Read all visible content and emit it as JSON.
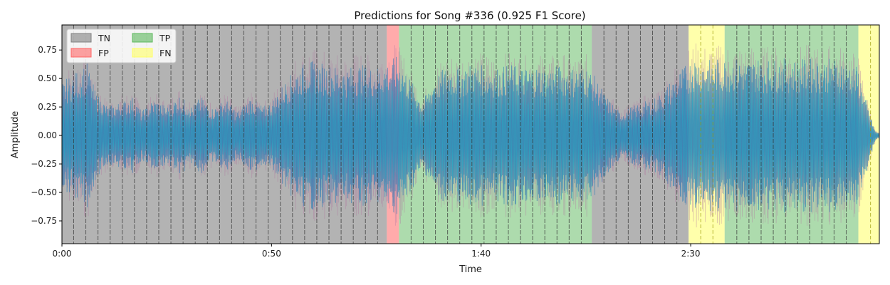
{
  "chart_data": {
    "type": "area",
    "title": "Predictions for Song #336 (0.925 F1 Score)",
    "xlabel": "Time",
    "ylabel": "Amplitude",
    "xlim": [
      0,
      195
    ],
    "ylim": [
      -0.95,
      0.97
    ],
    "xticks": [
      {
        "value": 0,
        "label": "0:00"
      },
      {
        "value": 50,
        "label": "0:50"
      },
      {
        "value": 100,
        "label": "1:40"
      },
      {
        "value": 150,
        "label": "2:30"
      }
    ],
    "yticks": [
      {
        "value": 0.75,
        "label": "0.75"
      },
      {
        "value": 0.5,
        "label": "0.50"
      },
      {
        "value": 0.25,
        "label": "0.25"
      },
      {
        "value": 0.0,
        "label": "0.00"
      },
      {
        "value": -0.25,
        "label": "−0.25"
      },
      {
        "value": -0.5,
        "label": "−0.50"
      },
      {
        "value": -0.75,
        "label": "−0.75"
      }
    ],
    "legend": {
      "placement": "top-left",
      "entries": [
        {
          "label": "TN",
          "color": "#808080"
        },
        {
          "label": "FP",
          "color": "#ff6666"
        },
        {
          "label": "TP",
          "color": "#5cb85c"
        },
        {
          "label": "FN",
          "color": "#ffff66"
        }
      ]
    },
    "segments": [
      {
        "class": "TN",
        "start": 0,
        "end": 77.5
      },
      {
        "class": "FP",
        "start": 77.5,
        "end": 80.4
      },
      {
        "class": "TP",
        "start": 80.4,
        "end": 126.4
      },
      {
        "class": "TN",
        "start": 126.4,
        "end": 149.5
      },
      {
        "class": "FN",
        "start": 149.5,
        "end": 158.1
      },
      {
        "class": "TP",
        "start": 158.1,
        "end": 190.0
      },
      {
        "class": "FN",
        "start": 190.0,
        "end": 195
      }
    ],
    "beat_lines": [
      2.8,
      5.7,
      8.6,
      11.5,
      14.4,
      17.3,
      20.2,
      23.1,
      26.0,
      28.9,
      31.8,
      34.7,
      37.6,
      40.5,
      43.4,
      46.3,
      49.2,
      52.1,
      55.0,
      57.9,
      60.8,
      63.7,
      66.6,
      69.5,
      72.4,
      75.3,
      83.3,
      86.2,
      89.1,
      92.0,
      94.9,
      97.8,
      100.7,
      103.6,
      106.5,
      109.4,
      112.3,
      115.2,
      118.1,
      121.0,
      123.9,
      129.3,
      132.2,
      135.1,
      138.0,
      140.9,
      143.8,
      146.7,
      152.4,
      155.3,
      161.0,
      163.9,
      166.8,
      169.7,
      172.6,
      175.5,
      178.4,
      181.3,
      184.2,
      187.1,
      192.9
    ],
    "envelope": [
      {
        "x": 0,
        "y": 0.55
      },
      {
        "x": 3,
        "y": 0.65
      },
      {
        "x": 6,
        "y": 0.75
      },
      {
        "x": 8,
        "y": 0.45
      },
      {
        "x": 11,
        "y": 0.3
      },
      {
        "x": 14,
        "y": 0.35
      },
      {
        "x": 17,
        "y": 0.4
      },
      {
        "x": 19,
        "y": 0.25
      },
      {
        "x": 22,
        "y": 0.38
      },
      {
        "x": 25,
        "y": 0.3
      },
      {
        "x": 28,
        "y": 0.42
      },
      {
        "x": 31,
        "y": 0.3
      },
      {
        "x": 33,
        "y": 0.4
      },
      {
        "x": 36,
        "y": 0.28
      },
      {
        "x": 39,
        "y": 0.38
      },
      {
        "x": 42,
        "y": 0.25
      },
      {
        "x": 45,
        "y": 0.4
      },
      {
        "x": 48,
        "y": 0.3
      },
      {
        "x": 50,
        "y": 0.35
      },
      {
        "x": 53,
        "y": 0.55
      },
      {
        "x": 56,
        "y": 0.7
      },
      {
        "x": 59,
        "y": 0.78
      },
      {
        "x": 62,
        "y": 0.75
      },
      {
        "x": 65,
        "y": 0.72
      },
      {
        "x": 68,
        "y": 0.7
      },
      {
        "x": 71,
        "y": 0.74
      },
      {
        "x": 74,
        "y": 0.7
      },
      {
        "x": 77,
        "y": 0.75
      },
      {
        "x": 80,
        "y": 0.82
      },
      {
        "x": 83,
        "y": 0.6
      },
      {
        "x": 86,
        "y": 0.35
      },
      {
        "x": 89,
        "y": 0.62
      },
      {
        "x": 92,
        "y": 0.72
      },
      {
        "x": 95,
        "y": 0.7
      },
      {
        "x": 98,
        "y": 0.75
      },
      {
        "x": 101,
        "y": 0.72
      },
      {
        "x": 104,
        "y": 0.7
      },
      {
        "x": 107,
        "y": 0.74
      },
      {
        "x": 110,
        "y": 0.7
      },
      {
        "x": 113,
        "y": 0.72
      },
      {
        "x": 116,
        "y": 0.7
      },
      {
        "x": 119,
        "y": 0.73
      },
      {
        "x": 122,
        "y": 0.7
      },
      {
        "x": 125,
        "y": 0.72
      },
      {
        "x": 127,
        "y": 0.62
      },
      {
        "x": 130,
        "y": 0.4
      },
      {
        "x": 133,
        "y": 0.25
      },
      {
        "x": 136,
        "y": 0.3
      },
      {
        "x": 139,
        "y": 0.35
      },
      {
        "x": 142,
        "y": 0.4
      },
      {
        "x": 145,
        "y": 0.55
      },
      {
        "x": 148,
        "y": 0.7
      },
      {
        "x": 151,
        "y": 0.82
      },
      {
        "x": 154,
        "y": 0.78
      },
      {
        "x": 157,
        "y": 0.8
      },
      {
        "x": 160,
        "y": 0.8
      },
      {
        "x": 163,
        "y": 0.78
      },
      {
        "x": 166,
        "y": 0.8
      },
      {
        "x": 169,
        "y": 0.78
      },
      {
        "x": 172,
        "y": 0.8
      },
      {
        "x": 175,
        "y": 0.78
      },
      {
        "x": 178,
        "y": 0.8
      },
      {
        "x": 181,
        "y": 0.78
      },
      {
        "x": 184,
        "y": 0.8
      },
      {
        "x": 187,
        "y": 0.78
      },
      {
        "x": 190,
        "y": 0.7
      },
      {
        "x": 192,
        "y": 0.35
      },
      {
        "x": 194,
        "y": 0.05
      },
      {
        "x": 195,
        "y": 0.02
      }
    ],
    "colors": {
      "waveform_primary": "#1f77b4",
      "waveform_secondary": "#b07aa1",
      "waveform_tail": "#17becf",
      "beat_line": "#333333",
      "fn_beat_line": "#999900"
    }
  }
}
